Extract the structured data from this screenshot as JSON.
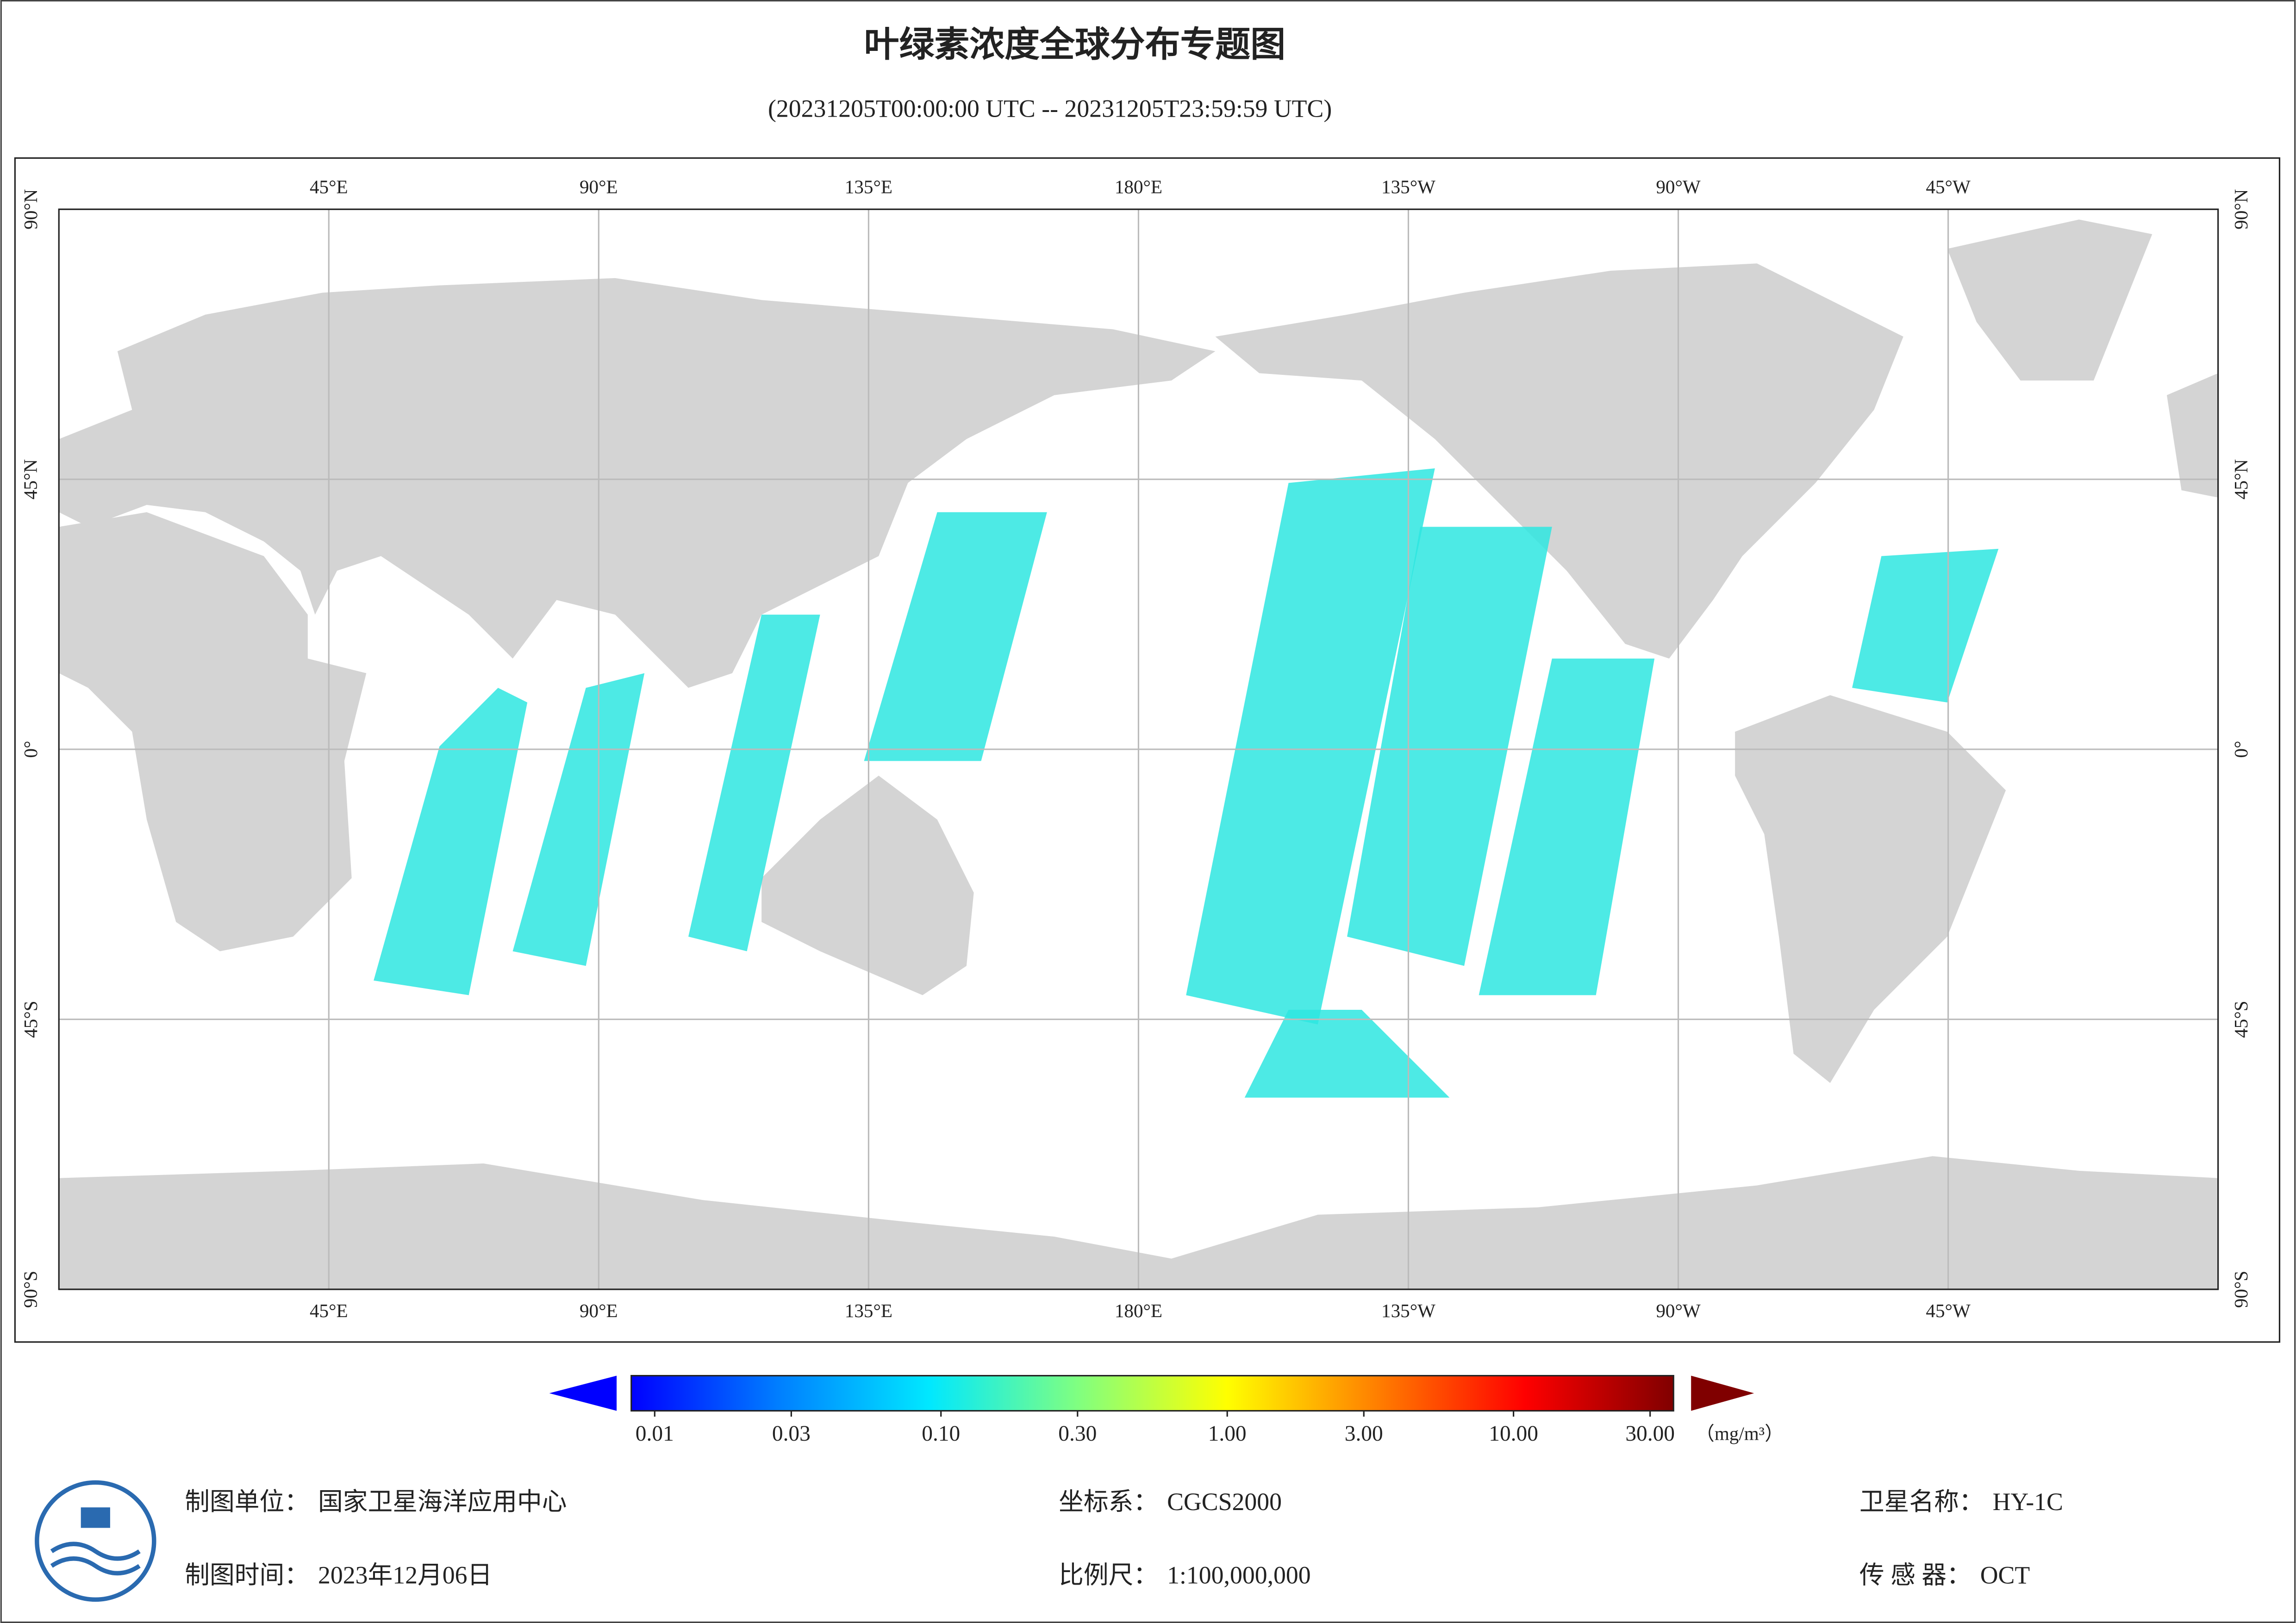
{
  "header": {
    "title": "叶绿素浓度全球分布专题图",
    "subtitle": "(20231205T00:00:00 UTC -- 20231205T23:59:59 UTC)"
  },
  "map": {
    "xlim": [
      0,
      360
    ],
    "ylim": [
      -90,
      90
    ],
    "grid": true,
    "lon_ticks": [
      {
        "value": 45,
        "label": "45°E"
      },
      {
        "value": 90,
        "label": "90°E"
      },
      {
        "value": 135,
        "label": "135°E"
      },
      {
        "value": 180,
        "label": "180°E"
      },
      {
        "value": 225,
        "label": "135°W"
      },
      {
        "value": 270,
        "label": "90°W"
      },
      {
        "value": 315,
        "label": "45°W"
      }
    ],
    "lat_ticks": [
      {
        "value": 90,
        "label": "90°N"
      },
      {
        "value": 45,
        "label": "45°N"
      },
      {
        "value": 0,
        "label": "0°"
      },
      {
        "value": -45,
        "label": "45°S"
      },
      {
        "value": -90,
        "label": "90°S"
      }
    ]
  },
  "colorbar": {
    "range": [
      0.01,
      30
    ],
    "log": true,
    "unit": "（mg/m³）",
    "colors": [
      "#0000ff",
      "#0080ff",
      "#00e8ff",
      "#80ff80",
      "#ffff00",
      "#ff8000",
      "#ff0000",
      "#800000"
    ],
    "ticks": [
      0.01,
      0.03,
      {
        "value": 0.1,
        "label": "0.10"
      },
      {
        "value": 0.3,
        "label": "0.30"
      },
      {
        "value": 1,
        "label": "1.00"
      },
      {
        "value": 3,
        "label": "3.00"
      },
      {
        "value": 10,
        "label": "10.00"
      },
      {
        "value": 30,
        "label": "30.00"
      }
    ]
  },
  "footer": [
    {
      "label": "制图单位：",
      "value": "国家卫星海洋应用中心"
    },
    {
      "label": "坐标系：",
      "value": "CGCS2000"
    },
    {
      "label": "卫星名称：",
      "value": "HY-1C"
    },
    {
      "label": "制图时间：",
      "value": "2023年12月06日"
    },
    {
      "label": "比例尺：",
      "value": "1:100,000,000"
    },
    {
      "label": "传 感 器：",
      "value": "OCT"
    }
  ]
}
